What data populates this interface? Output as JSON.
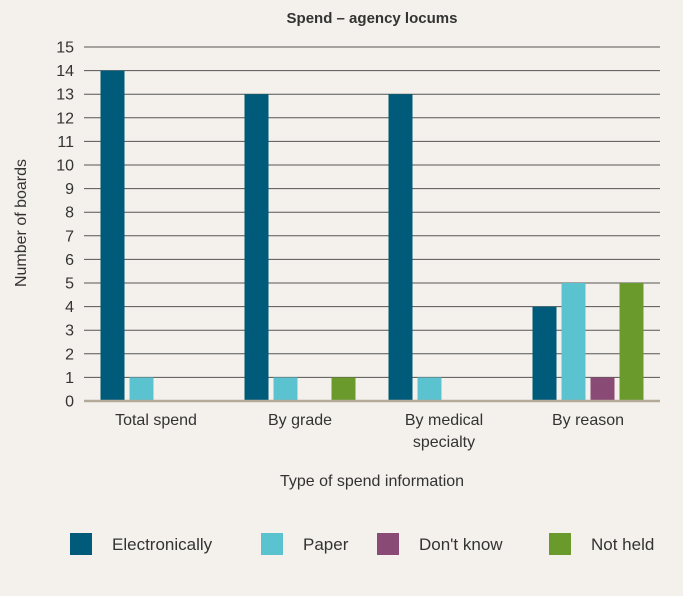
{
  "chart_data": {
    "type": "bar",
    "title": "Spend – agency locums",
    "xlabel": "Type of spend information",
    "ylabel": "Number of boards",
    "ylim": [
      0,
      15
    ],
    "yticks": [
      0,
      1,
      2,
      3,
      4,
      5,
      6,
      7,
      8,
      9,
      10,
      11,
      12,
      13,
      14,
      15
    ],
    "grid": true,
    "legend_position": "bottom",
    "categories": [
      [
        "Total spend"
      ],
      [
        "By grade"
      ],
      [
        "By medical",
        "specialty"
      ],
      [
        "By reason"
      ]
    ],
    "series": [
      {
        "name": "Electronically",
        "color": "#005b7a",
        "values": [
          14,
          13,
          13,
          4
        ]
      },
      {
        "name": "Paper",
        "color": "#5bc2cf",
        "values": [
          1,
          1,
          1,
          5
        ]
      },
      {
        "name": "Don't know",
        "color": "#8a4a76",
        "values": [
          0,
          0,
          0,
          1
        ]
      },
      {
        "name": "Not held",
        "color": "#6b9a2c",
        "values": [
          0,
          1,
          0,
          5
        ]
      }
    ],
    "colors": {
      "background": "#f4f1ec",
      "gridline": "#555555",
      "zero_line": "#b3aa9a",
      "text": "#333333"
    }
  }
}
